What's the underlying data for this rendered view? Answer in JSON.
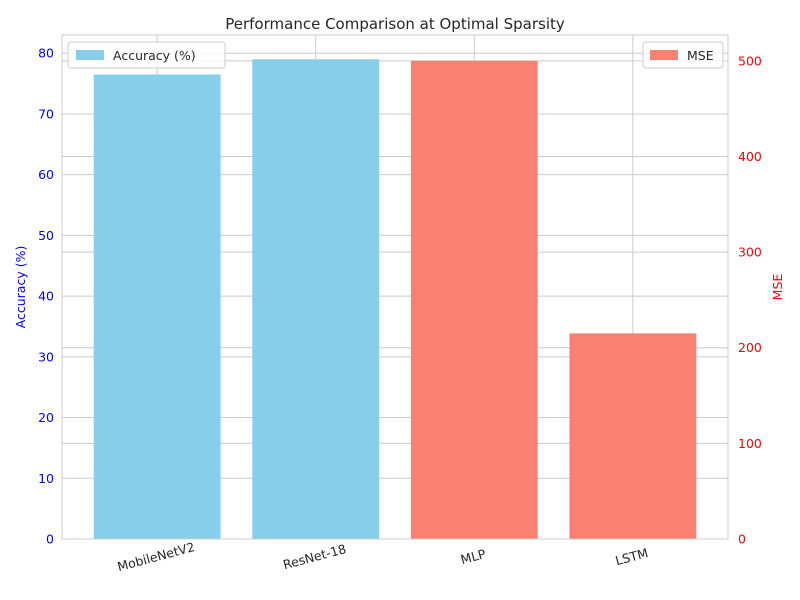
{
  "chart_data": {
    "type": "bar",
    "title": "Performance Comparison at Optimal Sparsity",
    "categories": [
      "MobileNetV2",
      "ResNet-18",
      "MLP",
      "LSTM"
    ],
    "series": [
      {
        "name": "Accuracy (%)",
        "axis": "left",
        "color": "#87ceeb",
        "values": [
          76.5,
          79.0,
          null,
          null
        ]
      },
      {
        "name": "MSE",
        "axis": "right",
        "color": "#fa8072",
        "values": [
          null,
          null,
          500,
          215
        ]
      }
    ],
    "ylabel_left": "Accuracy (%)",
    "ylabel_right": "MSE",
    "ylim_left": [
      0,
      83
    ],
    "ylim_right": [
      0,
      527
    ],
    "yticks_left": [
      0,
      10,
      20,
      30,
      40,
      50,
      60,
      70,
      80
    ],
    "yticks_right": [
      0,
      100,
      200,
      300,
      400,
      500
    ],
    "grid": true,
    "legend_left": "upper-left",
    "legend_right": "upper-right",
    "left_tick_color": "#0000ff",
    "right_tick_color": "#ff0000"
  }
}
